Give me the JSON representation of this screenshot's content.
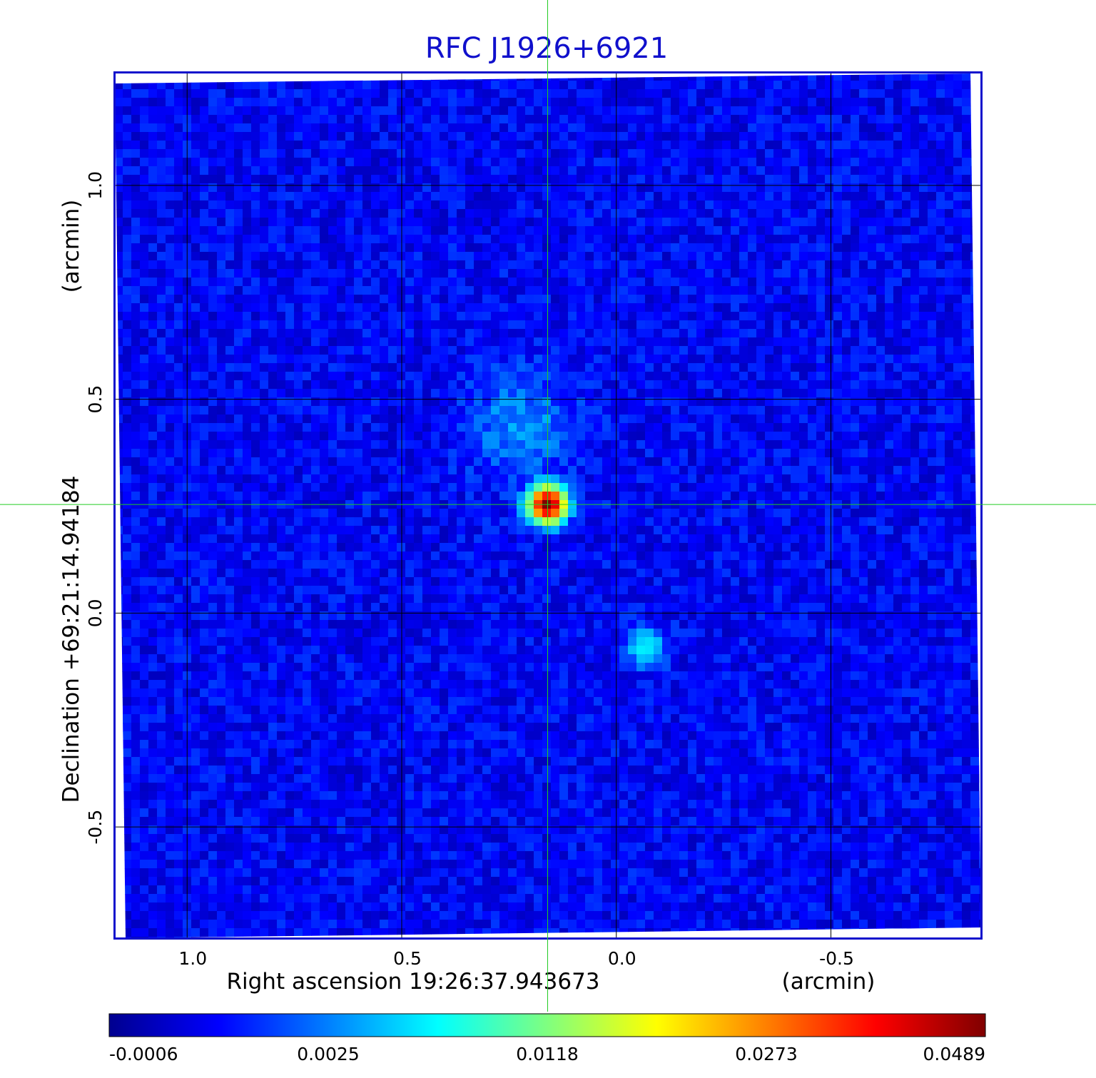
{
  "chart_data": {
    "type": "heatmap",
    "title": "RFC J1926+6921",
    "xlabel": "Right ascension  19:26:37.943673",
    "x_unit_label": "(arcmin)",
    "ylabel": "Declination  +69:21:14.94184",
    "y_unit_label": "(arcmin)",
    "x_ticks": [
      1.0,
      0.5,
      0.0,
      -0.5
    ],
    "x_tick_labels": [
      "1.0",
      "0.5",
      "0.0",
      "-0.5"
    ],
    "y_ticks": [
      1.0,
      0.5,
      0.0,
      -0.5
    ],
    "y_tick_labels": [
      "1.0",
      "0.5",
      "0.0",
      "-0.5"
    ],
    "xlim": [
      1.17,
      -0.85
    ],
    "ylim": [
      -0.76,
      1.265
    ],
    "x_reversed": true,
    "grid": true,
    "crosshair": {
      "x": 0.16,
      "y": 0.254,
      "color": "#22cc22"
    },
    "colormap": "jet",
    "colorbar": {
      "ticks": [
        -0.0006,
        0.0025,
        0.0118,
        0.0273,
        0.0489
      ],
      "tick_labels": [
        "-0.0006",
        "0.0025",
        "0.0118",
        "0.0273",
        "0.0489"
      ]
    },
    "sources": [
      {
        "x": 0.16,
        "y": 0.254,
        "peak": 0.0489
      },
      {
        "x": -0.07,
        "y": -0.08,
        "peak": 0.005
      },
      {
        "x": 0.22,
        "y": 0.44,
        "peak": 0.002
      }
    ],
    "noise_floor": 0.0002
  },
  "colors": {
    "frame": "#1010cc",
    "title": "#1010cc",
    "grid": "#000000",
    "crosshair": "#22cc22"
  }
}
